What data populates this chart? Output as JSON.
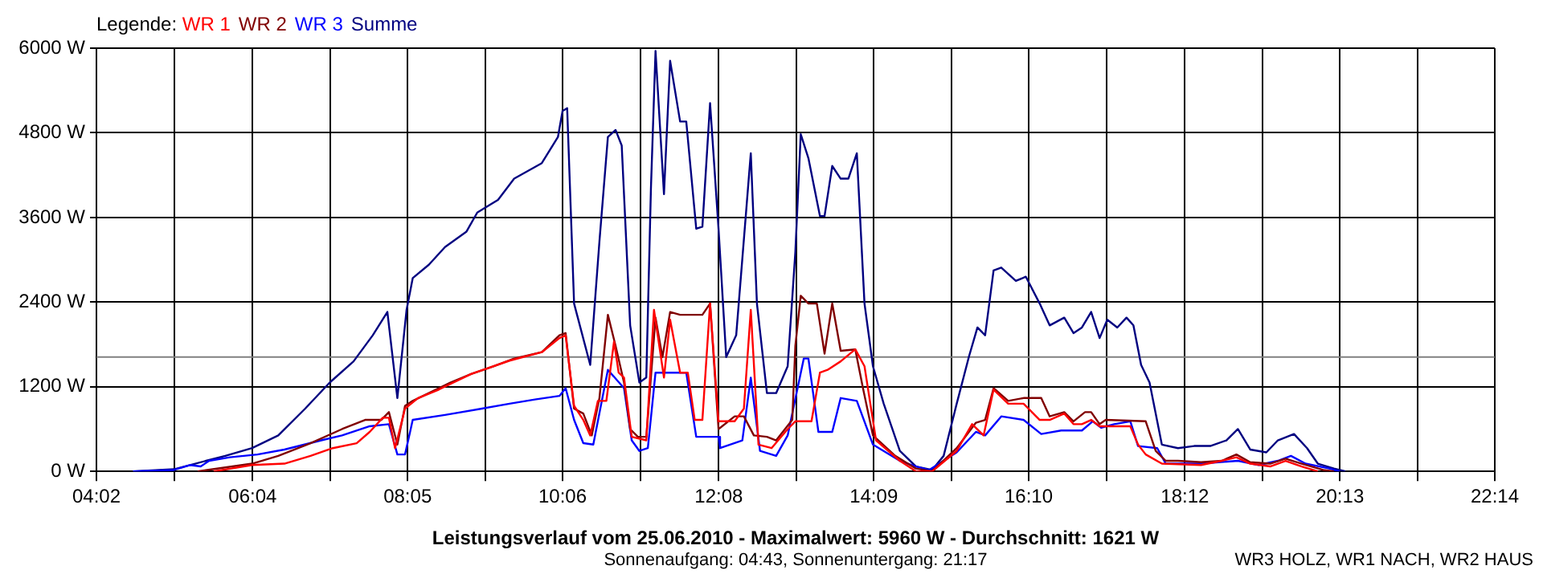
{
  "chart_data": {
    "type": "line",
    "title": "Leistungsverlauf vom 25.06.2010 - Maximalwert: 5960 W - Durchschnitt: 1621 W",
    "subtitle": "Sonnenaufgang: 04:43, Sonnenuntergang: 21:17",
    "annotations": [
      "WR3 HOLZ, WR1 NACH, WR2 HAUS"
    ],
    "legend_title": "Legende:",
    "legend": "top left",
    "grid": true,
    "marker": "none",
    "line_style": "solid",
    "xlim": [
      4.0333,
      22.2333
    ],
    "xticks": [
      {
        "value": 4.0333,
        "label": "04:02"
      },
      {
        "value": 5.05,
        "label": null
      },
      {
        "value": 6.0667,
        "label": "06:04"
      },
      {
        "value": 7.075,
        "label": null
      },
      {
        "value": 8.0833,
        "label": "08:05"
      },
      {
        "value": 9.0917,
        "label": null
      },
      {
        "value": 10.1,
        "label": "10:06"
      },
      {
        "value": 11.1167,
        "label": null
      },
      {
        "value": 12.1333,
        "label": "12:08"
      },
      {
        "value": 13.1417,
        "label": null
      },
      {
        "value": 14.15,
        "label": "14:09"
      },
      {
        "value": 15.1583,
        "label": null
      },
      {
        "value": 16.1667,
        "label": "16:10"
      },
      {
        "value": 17.1833,
        "label": null
      },
      {
        "value": 18.2,
        "label": "18:12"
      },
      {
        "value": 19.2083,
        "label": null
      },
      {
        "value": 20.2167,
        "label": "20:13"
      },
      {
        "value": 21.225,
        "label": null
      },
      {
        "value": 22.2333,
        "label": "22:14"
      }
    ],
    "ylim": [
      0,
      6000
    ],
    "yticks": [
      {
        "value": 0,
        "label": "0 W"
      },
      {
        "value": 1200,
        "label": "1200 W"
      },
      {
        "value": 2400,
        "label": "2400 W"
      },
      {
        "value": 3600,
        "label": "3600 W"
      },
      {
        "value": 4800,
        "label": "4800 W"
      },
      {
        "value": 6000,
        "label": "6000 W"
      }
    ],
    "ref_lines": [
      {
        "axis": "y",
        "value": 1621,
        "color": "#808080"
      }
    ],
    "series": [
      {
        "name": "WR 1",
        "color": "#ff0000",
        "x": [
          5.56,
          6.06,
          6.48,
          6.82,
          7.11,
          7.42,
          7.59,
          7.76,
          7.84,
          7.92,
          8.05,
          8.22,
          8.49,
          8.91,
          9.41,
          9.83,
          10.06,
          10.14,
          10.25,
          10.37,
          10.46,
          10.56,
          10.67,
          10.77,
          10.83,
          10.9,
          11.0,
          11.19,
          11.29,
          11.42,
          11.5,
          11.63,
          11.73,
          11.82,
          11.92,
          12.02,
          12.13,
          12.34,
          12.46,
          12.55,
          12.65,
          12.82,
          13.03,
          13.13,
          13.34,
          13.45,
          13.55,
          13.72,
          13.91,
          14.03,
          14.18,
          14.49,
          14.7,
          14.91,
          15.23,
          15.43,
          15.58,
          15.71,
          15.9,
          16.1,
          16.31,
          16.44,
          16.63,
          16.75,
          16.86,
          16.98,
          17.09,
          17.49,
          17.59,
          17.69,
          17.9,
          18.41,
          18.68,
          18.87,
          19.05,
          19.31,
          19.51,
          19.72,
          19.93
        ],
        "values": [
          0,
          90,
          110,
          220,
          330,
          400,
          560,
          760,
          760,
          330,
          890,
          1040,
          1160,
          1380,
          1570,
          1690,
          1890,
          1930,
          930,
          730,
          510,
          1000,
          1000,
          1840,
          1400,
          1330,
          490,
          440,
          2290,
          1330,
          2150,
          1400,
          1400,
          730,
          730,
          2380,
          710,
          710,
          890,
          2290,
          380,
          330,
          600,
          710,
          710,
          1400,
          1440,
          1560,
          1730,
          1490,
          440,
          150,
          0,
          0,
          290,
          670,
          510,
          1160,
          960,
          960,
          730,
          730,
          820,
          670,
          670,
          730,
          640,
          640,
          380,
          240,
          110,
          90,
          150,
          200,
          110,
          70,
          150,
          70,
          0
        ]
      },
      {
        "name": "WR 2",
        "color": "#800000",
        "x": [
          5.35,
          6.06,
          6.4,
          6.82,
          7.23,
          7.53,
          7.74,
          7.84,
          7.95,
          8.05,
          8.15,
          8.36,
          8.64,
          8.91,
          9.2,
          9.47,
          9.83,
          10.06,
          10.14,
          10.25,
          10.37,
          10.48,
          10.58,
          10.69,
          10.79,
          10.9,
          10.98,
          11.08,
          11.19,
          11.25,
          11.31,
          11.4,
          11.5,
          11.63,
          11.92,
          12.02,
          12.13,
          12.34,
          12.46,
          12.59,
          12.76,
          12.88,
          13.09,
          13.13,
          13.2,
          13.3,
          13.41,
          13.51,
          13.61,
          13.72,
          13.91,
          14.01,
          14.14,
          14.43,
          14.7,
          14.91,
          15.23,
          15.48,
          15.6,
          15.71,
          15.9,
          16.1,
          16.33,
          16.44,
          16.63,
          16.75,
          16.9,
          16.98,
          17.09,
          17.17,
          17.69,
          17.82,
          17.95,
          18.11,
          18.41,
          18.68,
          18.87,
          19.05,
          19.31,
          19.51,
          19.72,
          20.0,
          20.14
        ],
        "values": [
          0,
          110,
          220,
          400,
          600,
          730,
          730,
          840,
          380,
          930,
          1000,
          1110,
          1260,
          1380,
          1490,
          1600,
          1690,
          1930,
          1960,
          890,
          820,
          510,
          1040,
          2220,
          1780,
          1260,
          600,
          490,
          490,
          1330,
          2180,
          1620,
          2260,
          2220,
          2220,
          2380,
          600,
          780,
          780,
          510,
          490,
          440,
          730,
          1780,
          2490,
          2380,
          2380,
          1670,
          2380,
          1710,
          1730,
          1180,
          510,
          220,
          40,
          0,
          330,
          690,
          730,
          1180,
          1000,
          1040,
          1040,
          780,
          840,
          710,
          840,
          840,
          670,
          730,
          710,
          290,
          150,
          150,
          130,
          150,
          240,
          130,
          110,
          180,
          110,
          20,
          0
        ]
      },
      {
        "name": "WR 3",
        "color": "#0000ff",
        "x": [
          4.51,
          5.04,
          5.25,
          5.39,
          5.5,
          5.77,
          6.13,
          6.48,
          6.96,
          7.23,
          7.59,
          7.84,
          7.95,
          8.05,
          8.15,
          8.57,
          9.05,
          9.41,
          9.74,
          10.06,
          10.14,
          10.25,
          10.37,
          10.5,
          10.69,
          10.9,
          11.0,
          11.1,
          11.21,
          11.31,
          11.71,
          11.84,
          12.13,
          12.15,
          12.44,
          12.55,
          12.67,
          12.88,
          13.03,
          13.24,
          13.3,
          13.43,
          13.61,
          13.72,
          13.93,
          14.14,
          14.49,
          14.7,
          14.87,
          15.23,
          15.48,
          15.6,
          15.81,
          16.1,
          16.33,
          16.59,
          16.86,
          17.0,
          17.11,
          17.28,
          17.49,
          17.59,
          17.84,
          17.95,
          18.41,
          18.89,
          19.16,
          19.41,
          19.58,
          19.77,
          20.08,
          20.21
        ],
        "values": [
          0,
          20,
          90,
          70,
          150,
          200,
          240,
          310,
          440,
          510,
          640,
          670,
          240,
          240,
          730,
          800,
          890,
          960,
          1020,
          1070,
          1180,
          730,
          400,
          380,
          1440,
          1180,
          440,
          290,
          330,
          1400,
          1400,
          490,
          490,
          330,
          440,
          1330,
          290,
          220,
          510,
          1600,
          1600,
          560,
          560,
          1040,
          1000,
          380,
          150,
          70,
          20,
          270,
          560,
          510,
          780,
          730,
          530,
          580,
          580,
          710,
          620,
          670,
          710,
          360,
          330,
          110,
          110,
          150,
          90,
          150,
          220,
          110,
          40,
          0
        ]
      },
      {
        "name": "Summe",
        "color": "#000080",
        "x": [
          4.51,
          5.04,
          5.25,
          5.46,
          5.71,
          6.06,
          6.4,
          6.75,
          7.07,
          7.38,
          7.63,
          7.82,
          7.95,
          8.07,
          8.15,
          8.36,
          8.57,
          8.85,
          8.99,
          9.26,
          9.47,
          9.83,
          10.04,
          10.1,
          10.16,
          10.25,
          10.46,
          10.58,
          10.69,
          10.79,
          10.87,
          10.98,
          11.1,
          11.19,
          11.25,
          11.31,
          11.42,
          11.5,
          11.63,
          11.71,
          11.84,
          11.92,
          12.02,
          12.13,
          12.23,
          12.36,
          12.55,
          12.63,
          12.76,
          12.88,
          13.03,
          13.13,
          13.2,
          13.3,
          13.45,
          13.51,
          13.61,
          13.72,
          13.82,
          13.93,
          14.03,
          14.14,
          14.28,
          14.49,
          14.7,
          14.91,
          15.06,
          15.23,
          15.39,
          15.5,
          15.6,
          15.71,
          15.81,
          16.0,
          16.13,
          16.31,
          16.44,
          16.63,
          16.75,
          16.86,
          16.98,
          17.09,
          17.19,
          17.32,
          17.44,
          17.53,
          17.63,
          17.74,
          17.9,
          18.11,
          18.32,
          18.53,
          18.74,
          18.89,
          19.05,
          19.26,
          19.41,
          19.62,
          19.79,
          19.93,
          20.14,
          20.29
        ],
        "values": [
          0,
          30,
          90,
          150,
          220,
          330,
          510,
          890,
          1260,
          1560,
          1930,
          2260,
          1040,
          2290,
          2740,
          2930,
          3180,
          3400,
          3670,
          3850,
          4150,
          4370,
          4740,
          5110,
          5150,
          2380,
          1510,
          3260,
          4740,
          4840,
          4620,
          2070,
          1260,
          1330,
          4000,
          5960,
          3930,
          5820,
          4960,
          4960,
          3440,
          3470,
          5220,
          3440,
          1620,
          1930,
          4510,
          2380,
          1110,
          1110,
          1490,
          3110,
          4780,
          4440,
          3620,
          3620,
          4330,
          4150,
          4150,
          4510,
          2380,
          1490,
          960,
          290,
          70,
          20,
          220,
          960,
          1630,
          2040,
          1930,
          2850,
          2890,
          2700,
          2760,
          2380,
          2070,
          2180,
          1960,
          2040,
          2260,
          1890,
          2150,
          2040,
          2180,
          2070,
          1510,
          1260,
          380,
          330,
          360,
          360,
          440,
          600,
          310,
          270,
          440,
          530,
          330,
          110,
          40,
          0
        ]
      }
    ]
  }
}
